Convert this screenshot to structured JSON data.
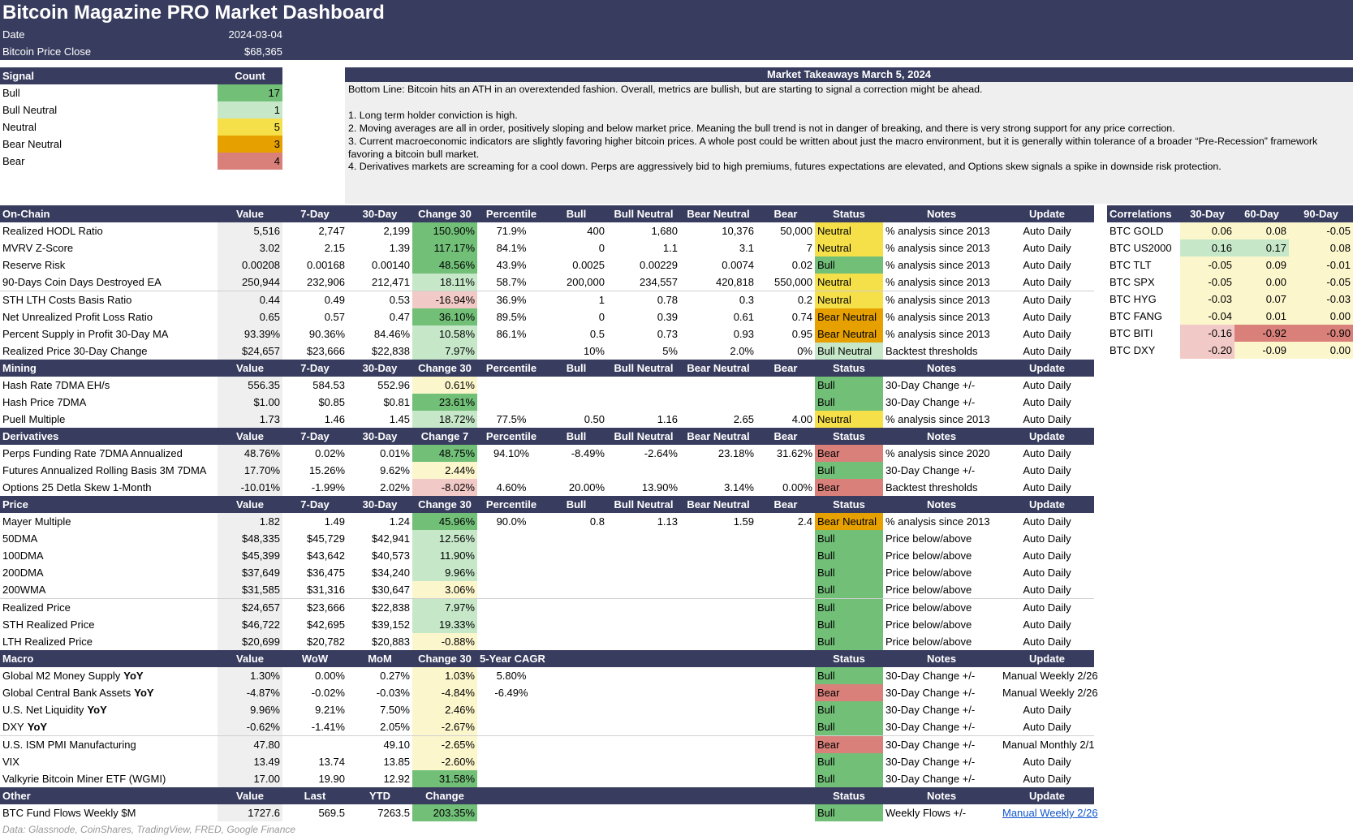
{
  "header": {
    "title": "Bitcoin Magazine PRO Market Dashboard",
    "date_label": "Date",
    "date_value": "2024-03-04",
    "price_label": "Bitcoin Price Close",
    "price_value": "$68,365"
  },
  "signal": {
    "headers": [
      "Signal",
      "Count"
    ],
    "rows": [
      {
        "name": "Bull",
        "count": "17",
        "color": "#72bf78"
      },
      {
        "name": "Bull Neutral",
        "count": "1",
        "color": "#c6e8c9"
      },
      {
        "name": "Neutral",
        "count": "5",
        "color": "#f5e04a"
      },
      {
        "name": "Bear Neutral",
        "count": "3",
        "color": "#e6a000"
      },
      {
        "name": "Bear",
        "count": "4",
        "color": "#d9807a"
      }
    ]
  },
  "takeaways": {
    "title": "Market Takeaways March 5, 2024",
    "text": "Bottom Line: Bitcoin hits an ATH in an overextended fashion. Overall, metrics are bullish, but are starting to signal a correction might be ahead.\n\n1. Long term holder conviction is high.\n2. Moving averages are all in order, positively sloping and below market price. Meaning the bull trend is not in danger of breaking, and there is very strong support for any price correction.\n3. Current macroeconomic indicators are slightly favoring higher bitcoin prices. A whole post could be written about just the macro environment, but it is generally within tolerance of a broader “Pre-Recession” framework favoring a bitcoin bull market.\n4. Derivatives markets are screaming for a cool down. Perps are aggressively bid to high premiums, futures expectations are elevated, and Options skew signals a spike in downside risk protection."
  },
  "colors": {
    "header_bg": "#383c5e",
    "bull": "#72bf78",
    "bull_neutral": "#c6e8c9",
    "neutral": "#f5e04a",
    "bear_neutral": "#e6a000",
    "bear": "#d9807a",
    "green_strong": "#72bf78",
    "green_light": "#c6e8c9",
    "yellow_light": "#fcf6cc",
    "pink_light": "#f1c9c6",
    "red_strong": "#d9807a",
    "value_bg": "#efefef"
  },
  "sections": [
    {
      "headers": [
        "On-Chain",
        "Value",
        "7-Day",
        "30-Day",
        "Change 30",
        "Percentile",
        "Bull",
        "Bull Neutral",
        "Bear Neutral",
        "Bear",
        "Status",
        "Notes",
        "Update"
      ],
      "rows": [
        {
          "c": [
            "Realized HODL Ratio",
            "5,516",
            "2,747",
            "2,199",
            "150.90%",
            "71.9%",
            "400",
            "1,680",
            "10,376",
            "50,000",
            "Neutral",
            "% analysis since 2013",
            "Auto Daily"
          ],
          "cc": "#72bf78",
          "sc": "#f5e04a"
        },
        {
          "c": [
            "MVRV Z-Score",
            "3.02",
            "2.15",
            "1.39",
            "117.17%",
            "84.1%",
            "0",
            "1.1",
            "3.1",
            "7",
            "Neutral",
            "% analysis since 2013",
            "Auto Daily"
          ],
          "cc": "#72bf78",
          "sc": "#f5e04a"
        },
        {
          "c": [
            "Reserve Risk",
            "0.00208",
            "0.00168",
            "0.00140",
            "48.56%",
            "43.9%",
            "0.0025",
            "0.00229",
            "0.0074",
            "0.02",
            "Bull",
            "% analysis since 2013",
            "Auto Daily"
          ],
          "cc": "#72bf78",
          "sc": "#72bf78"
        },
        {
          "c": [
            "90-Days Coin Days Destroyed EA",
            "250,944",
            "232,906",
            "212,471",
            "18.11%",
            "58.7%",
            "200,000",
            "234,557",
            "420,818",
            "550,000",
            "Neutral",
            "% analysis since 2013",
            "Auto Daily"
          ],
          "cc": "#c6e8c9",
          "sc": "#f5e04a",
          "sep": true
        },
        {
          "c": [
            "STH LTH Costs Basis Ratio",
            "0.44",
            "0.49",
            "0.53",
            "-16.94%",
            "36.9%",
            "1",
            "0.78",
            "0.3",
            "0.2",
            "Neutral",
            "% analysis since 2013",
            "Auto Daily"
          ],
          "cc": "#f1c9c6",
          "sc": "#f5e04a"
        },
        {
          "c": [
            "Net Unrealized Profit Loss Ratio",
            "0.65",
            "0.57",
            "0.47",
            "36.10%",
            "89.5%",
            "0",
            "0.39",
            "0.61",
            "0.74",
            "Bear Neutral",
            "% analysis since 2013",
            "Auto Daily"
          ],
          "cc": "#72bf78",
          "sc": "#e6a000"
        },
        {
          "c": [
            "Percent Supply in Profit 30-Day MA",
            "93.39%",
            "90.36%",
            "84.46%",
            "10.58%",
            "86.1%",
            "0.5",
            "0.73",
            "0.93",
            "0.95",
            "Bear Neutral",
            "% analysis since 2013",
            "Auto Daily"
          ],
          "cc": "#c6e8c9",
          "sc": "#e6a000"
        },
        {
          "c": [
            "Realized Price 30-Day Change",
            "$24,657",
            "$23,666",
            "$22,838",
            "7.97%",
            "",
            "10%",
            "5%",
            "2.0%",
            "0%",
            "Bull Neutral",
            "Backtest thresholds",
            "Auto Daily"
          ],
          "cc": "#c6e8c9",
          "sc": "#c6e8c9"
        }
      ]
    },
    {
      "headers": [
        "Mining",
        "Value",
        "7-Day",
        "30-Day",
        "Change 30",
        "Percentile",
        "Bull",
        "Bull Neutral",
        "Bear Neutral",
        "Bear",
        "Status",
        "Notes",
        "Update"
      ],
      "rows": [
        {
          "c": [
            "Hash Rate 7DMA EH/s",
            "556.35",
            "584.53",
            "552.96",
            "0.61%",
            "",
            "",
            "",
            "",
            "",
            "Bull",
            "30-Day Change +/-",
            "Auto Daily"
          ],
          "cc": "#fcf6cc",
          "sc": "#72bf78"
        },
        {
          "c": [
            "Hash Price 7DMA",
            "$1.00",
            "$0.85",
            "$0.81",
            "23.61%",
            "",
            "",
            "",
            "",
            "",
            "Bull",
            "30-Day Change +/-",
            "Auto Daily"
          ],
          "cc": "#72bf78",
          "sc": "#72bf78"
        },
        {
          "c": [
            "Puell Multiple",
            "1.73",
            "1.46",
            "1.45",
            "18.72%",
            "77.5%",
            "0.50",
            "1.16",
            "2.65",
            "4.00",
            "Neutral",
            "% analysis since 2013",
            "Auto Daily"
          ],
          "cc": "#c6e8c9",
          "sc": "#f5e04a"
        }
      ]
    },
    {
      "headers": [
        "Derivatives",
        "Value",
        "7-Day",
        "30-Day",
        "Change 7",
        "Percentile",
        "Bull",
        "Bull Neutral",
        "Bear Neutral",
        "Bear",
        "Status",
        "Notes",
        "Update"
      ],
      "rows": [
        {
          "c": [
            "Perps Funding Rate 7DMA Annualized",
            "48.76%",
            "0.02%",
            "0.01%",
            "48.75%",
            "94.10%",
            "-8.49%",
            "-2.64%",
            "23.18%",
            "31.62%",
            "Bear",
            "% analysis since 2020",
            "Auto Daily"
          ],
          "cc": "#72bf78",
          "sc": "#d9807a"
        },
        {
          "c": [
            "Futures Annualized Rolling Basis 3M 7DMA",
            "17.70%",
            "15.26%",
            "9.62%",
            "2.44%",
            "",
            "",
            "",
            "",
            "",
            "Bull",
            "30-Day Change +/-",
            "Auto Daily"
          ],
          "cc": "#fcf6cc",
          "sc": "#72bf78"
        },
        {
          "c": [
            "Options 25 Detla Skew 1-Month",
            "-10.01%",
            "-1.99%",
            "2.02%",
            "-8.02%",
            "4.60%",
            "20.00%",
            "13.90%",
            "3.14%",
            "0.00%",
            "Bear",
            "Backtest thresholds",
            "Auto Daily"
          ],
          "cc": "#f1c9c6",
          "sc": "#d9807a"
        }
      ]
    },
    {
      "headers": [
        "Price",
        "Value",
        "7-Day",
        "30-Day",
        "Change 30",
        "Percentile",
        "Bull",
        "Bull Neutral",
        "Bear Neutral",
        "Bear",
        "Status",
        "Notes",
        "Update"
      ],
      "rows": [
        {
          "c": [
            "Mayer Multiple",
            "1.82",
            "1.49",
            "1.24",
            "45.96%",
            "90.0%",
            "0.8",
            "1.13",
            "1.59",
            "2.4",
            "Bear Neutral",
            "% analysis since 2013",
            "Auto Daily"
          ],
          "cc": "#72bf78",
          "sc": "#e6a000"
        },
        {
          "c": [
            "50DMA",
            "$48,335",
            "$45,729",
            "$42,941",
            "12.56%",
            "",
            "",
            "",
            "",
            "",
            "Bull",
            "Price below/above",
            "Auto Daily"
          ],
          "cc": "#c6e8c9",
          "sc": "#72bf78"
        },
        {
          "c": [
            "100DMA",
            "$45,399",
            "$43,642",
            "$40,573",
            "11.90%",
            "",
            "",
            "",
            "",
            "",
            "Bull",
            "Price below/above",
            "Auto Daily"
          ],
          "cc": "#c6e8c9",
          "sc": "#72bf78"
        },
        {
          "c": [
            "200DMA",
            "$37,649",
            "$36,475",
            "$34,240",
            "9.96%",
            "",
            "",
            "",
            "",
            "",
            "Bull",
            "Price below/above",
            "Auto Daily"
          ],
          "cc": "#c6e8c9",
          "sc": "#72bf78"
        },
        {
          "c": [
            "200WMA",
            "$31,585",
            "$31,316",
            "$30,647",
            "3.06%",
            "",
            "",
            "",
            "",
            "",
            "Bull",
            "Price below/above",
            "Auto Daily"
          ],
          "cc": "#fcf6cc",
          "sc": "#72bf78",
          "sep": true
        },
        {
          "c": [
            "Realized Price",
            "$24,657",
            "$23,666",
            "$22,838",
            "7.97%",
            "",
            "",
            "",
            "",
            "",
            "Bull",
            "Price below/above",
            "Auto Daily"
          ],
          "cc": "#c6e8c9",
          "sc": "#72bf78"
        },
        {
          "c": [
            "STH Realized Price",
            "$46,722",
            "$42,695",
            "$39,152",
            "19.33%",
            "",
            "",
            "",
            "",
            "",
            "Bull",
            "Price below/above",
            "Auto Daily"
          ],
          "cc": "#c6e8c9",
          "sc": "#72bf78"
        },
        {
          "c": [
            "LTH Realized Price",
            "$20,699",
            "$20,782",
            "$20,883",
            "-0.88%",
            "",
            "",
            "",
            "",
            "",
            "Bull",
            "Price below/above",
            "Auto Daily"
          ],
          "cc": "#fcf6cc",
          "sc": "#72bf78"
        }
      ]
    },
    {
      "headers": [
        "Macro",
        "Value",
        "WoW",
        "MoM",
        "Change 30",
        "5-Year CAGR",
        "",
        "",
        "",
        "",
        "Status",
        "Notes",
        "Update"
      ],
      "rows": [
        {
          "c": [
            "Global M2 Money Supply",
            "1.30%",
            "0.00%",
            "0.27%",
            "1.03%",
            "5.80%",
            "",
            "",
            "",
            "",
            "Bull",
            "30-Day Change +/-",
            "Manual Weekly 2/26"
          ],
          "bold": "YoY",
          "cc": "#fcf6cc",
          "sc": "#72bf78"
        },
        {
          "c": [
            "Global Central Bank Assets",
            "-4.87%",
            "-0.02%",
            "-0.03%",
            "-4.84%",
            "-6.49%",
            "",
            "",
            "",
            "",
            "Bear",
            "30-Day Change +/-",
            "Manual Weekly 2/26"
          ],
          "bold": "YoY",
          "cc": "#fcf6cc",
          "sc": "#d9807a"
        },
        {
          "c": [
            "U.S. Net Liquidity",
            "9.96%",
            "9.21%",
            "7.50%",
            "2.46%",
            "",
            "",
            "",
            "",
            "",
            "Bull",
            "30-Day Change +/-",
            "Auto Daily"
          ],
          "bold": "YoY",
          "cc": "#fcf6cc",
          "sc": "#72bf78"
        },
        {
          "c": [
            "DXY",
            "-0.62%",
            "-1.41%",
            "2.05%",
            "-2.67%",
            "",
            "",
            "",
            "",
            "",
            "Bull",
            "30-Day Change +/-",
            "Auto Daily"
          ],
          "bold": "YoY",
          "cc": "#fcf6cc",
          "sc": "#72bf78",
          "sep": true
        },
        {
          "c": [
            "U.S. ISM PMI Manufacturing",
            "47.80",
            "",
            "49.10",
            "-2.65%",
            "",
            "",
            "",
            "",
            "",
            "Bear",
            "30-Day Change +/-",
            "Manual Monthly 2/1"
          ],
          "cc": "#fcf6cc",
          "sc": "#d9807a"
        },
        {
          "c": [
            "VIX",
            "13.49",
            "13.74",
            "13.85",
            "-2.60%",
            "",
            "",
            "",
            "",
            "",
            "Bull",
            "30-Day Change +/-",
            "Auto Daily"
          ],
          "cc": "#fcf6cc",
          "sc": "#72bf78"
        },
        {
          "c": [
            "Valkyrie Bitcoin Miner ETF (WGMI)",
            "17.00",
            "19.90",
            "12.92",
            "31.58%",
            "",
            "",
            "",
            "",
            "",
            "Bull",
            "30-Day Change +/-",
            "Auto Daily"
          ],
          "cc": "#72bf78",
          "sc": "#72bf78"
        }
      ]
    },
    {
      "headers": [
        "Other",
        "Value",
        "Last",
        "YTD",
        "Change",
        "",
        "",
        "",
        "",
        "",
        "Status",
        "Notes",
        "Update"
      ],
      "rows": [
        {
          "c": [
            "BTC Fund Flows Weekly $M",
            "1727.6",
            "569.5",
            "7263.5",
            "203.35%",
            "",
            "",
            "",
            "",
            "",
            "Bull",
            "Weekly Flows +/-",
            "Manual Weekly 2/26"
          ],
          "cc": "#72bf78",
          "sc": "#72bf78",
          "link": true
        }
      ]
    }
  ],
  "correlations": {
    "headers": [
      "Correlations",
      "30-Day",
      "60-Day",
      "90-Day"
    ],
    "rows": [
      {
        "c": [
          "BTC GOLD",
          "0.06",
          "0.08",
          "-0.05"
        ],
        "bg": [
          "#fcf6cc",
          "#fcf6cc",
          "#fcf6cc"
        ]
      },
      {
        "c": [
          "BTC US2000",
          "0.16",
          "0.17",
          "0.08"
        ],
        "bg": [
          "#c6e8c9",
          "#c6e8c9",
          "#fcf6cc"
        ]
      },
      {
        "c": [
          "BTC TLT",
          "-0.05",
          "0.09",
          "-0.01"
        ],
        "bg": [
          "#fcf6cc",
          "#fcf6cc",
          "#fcf6cc"
        ]
      },
      {
        "c": [
          "BTC SPX",
          "-0.05",
          "0.00",
          "-0.05"
        ],
        "bg": [
          "#fcf6cc",
          "#fcf6cc",
          "#fcf6cc"
        ]
      },
      {
        "c": [
          "BTC HYG",
          "-0.03",
          "0.07",
          "-0.03"
        ],
        "bg": [
          "#fcf6cc",
          "#fcf6cc",
          "#fcf6cc"
        ]
      },
      {
        "c": [
          "BTC FANG",
          "-0.04",
          "0.01",
          "0.00"
        ],
        "bg": [
          "#fcf6cc",
          "#fcf6cc",
          "#fcf6cc"
        ]
      },
      {
        "c": [
          "BTC BITI",
          "-0.16",
          "-0.92",
          "-0.90"
        ],
        "bg": [
          "#f1c9c6",
          "#d9807a",
          "#d9807a"
        ]
      },
      {
        "c": [
          "BTC DXY",
          "-0.20",
          "-0.09",
          "0.00"
        ],
        "bg": [
          "#f1c9c6",
          "#fcf6cc",
          "#fcf6cc"
        ]
      }
    ]
  },
  "footer": {
    "source": "Data: Glassnode, CoinShares, TradingView, FRED, Google Finance"
  }
}
